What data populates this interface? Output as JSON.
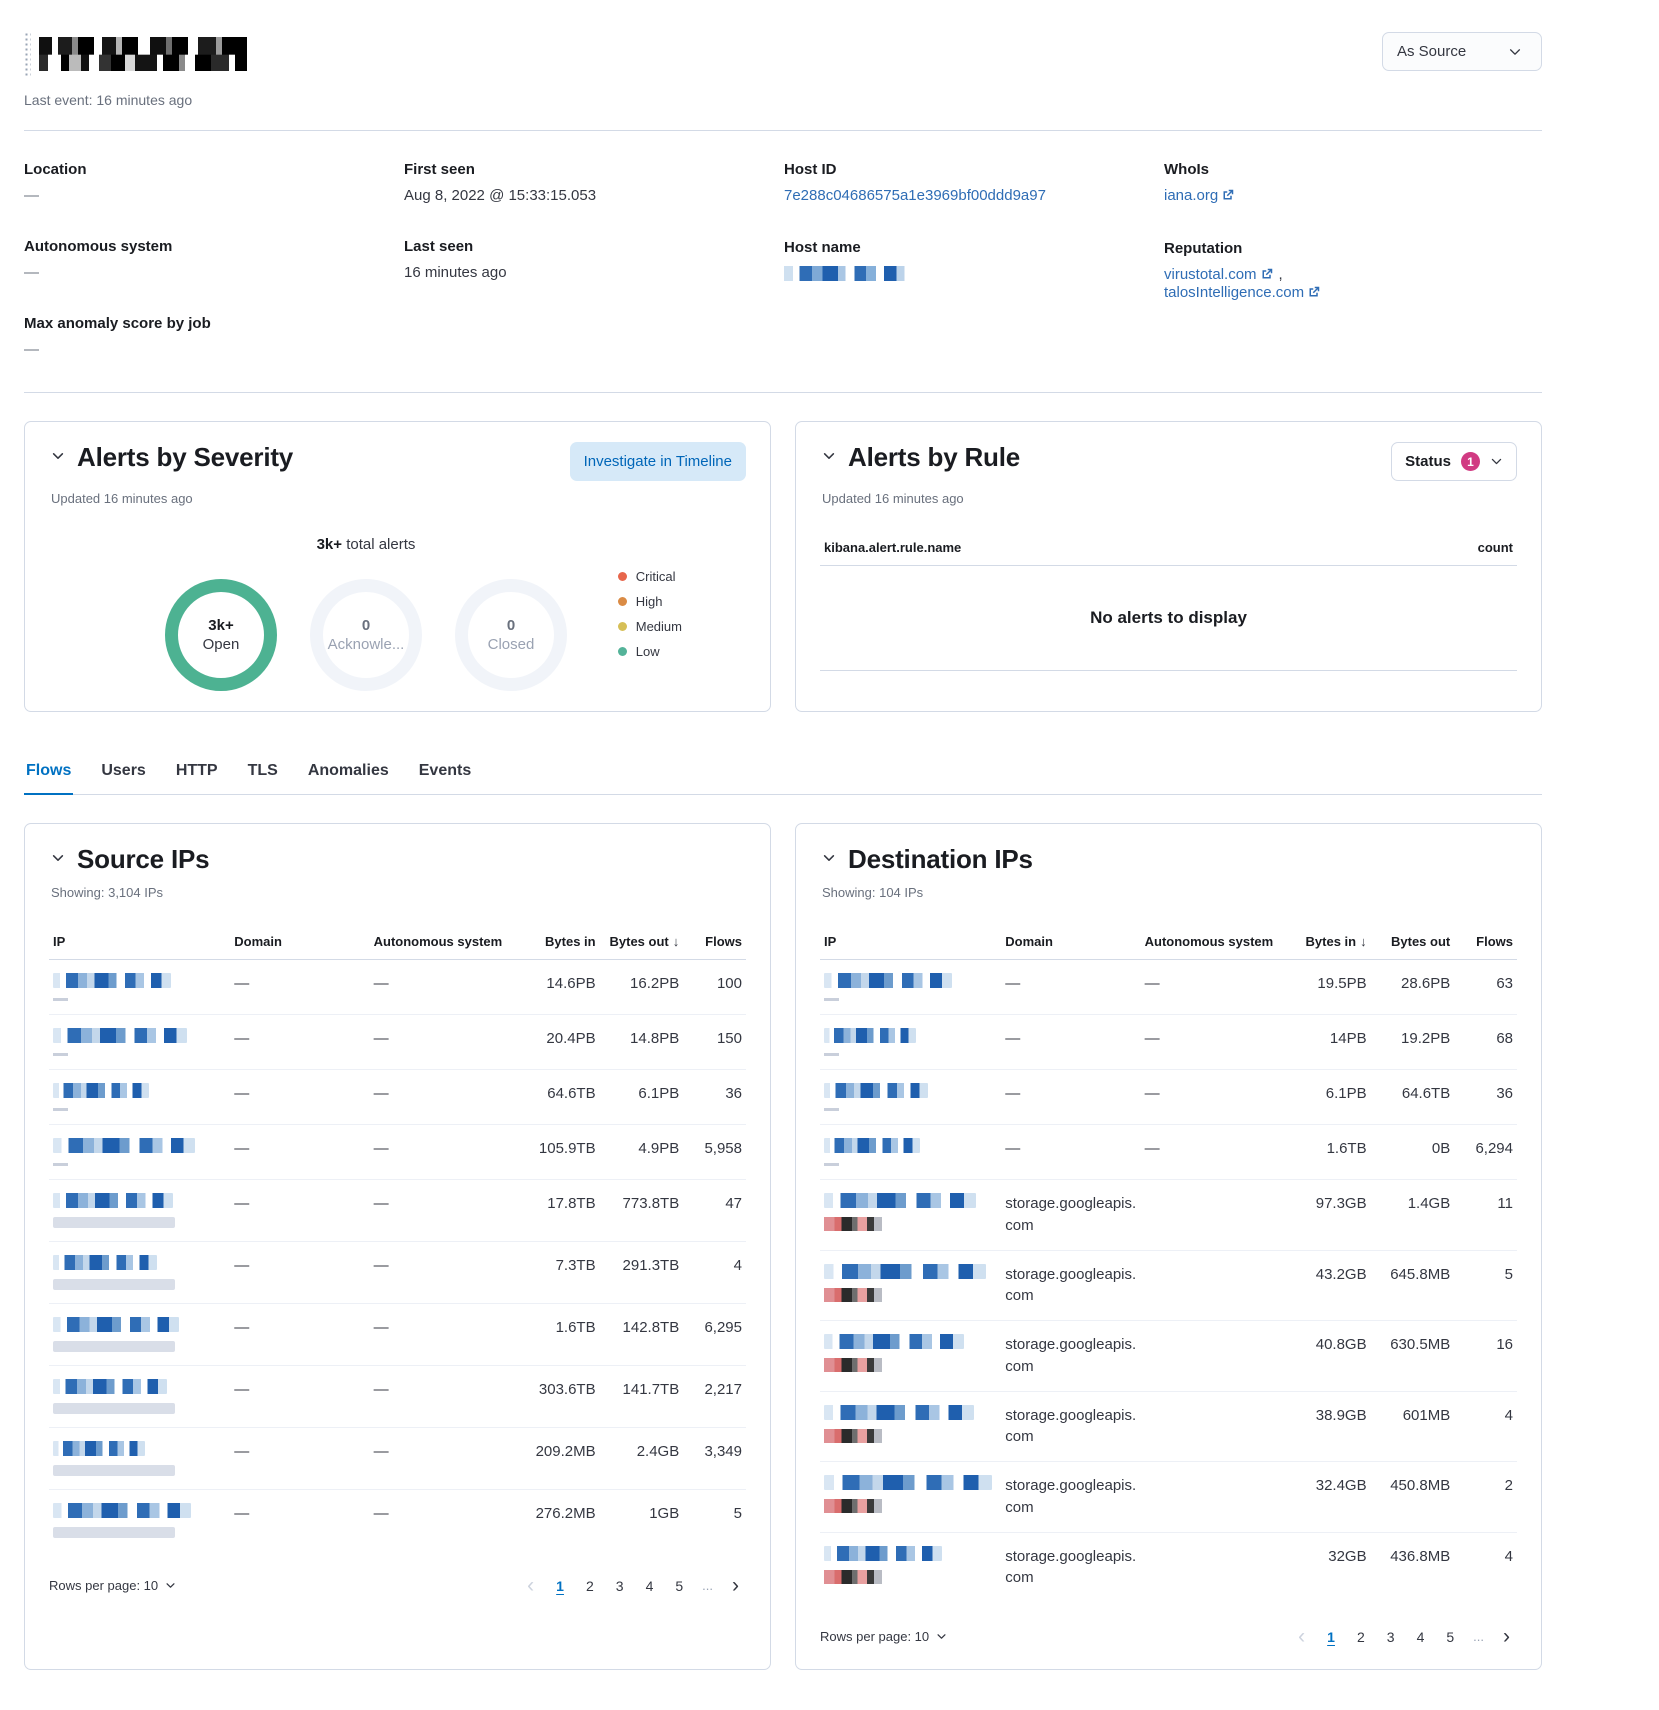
{
  "header": {
    "last_event": "Last event: 16 minutes ago",
    "view_selector": "As Source"
  },
  "meta": {
    "location": {
      "label": "Location",
      "value": "—"
    },
    "autonomous_system": {
      "label": "Autonomous system",
      "value": "—"
    },
    "max_anomaly": {
      "label": "Max anomaly score by job",
      "value": "—"
    },
    "first_seen": {
      "label": "First seen",
      "value": "Aug 8, 2022 @ 15:33:15.053"
    },
    "last_seen": {
      "label": "Last seen",
      "value": "16 minutes ago"
    },
    "host_id": {
      "label": "Host ID",
      "value": "7e288c04686575a1e3969bf00ddd9a97"
    },
    "host_name": {
      "label": "Host name"
    },
    "whois": {
      "label": "WhoIs",
      "link": "iana.org"
    },
    "reputation": {
      "label": "Reputation",
      "link1": "virustotal.com",
      "separator": ",",
      "link2": "talosIntelligence.com"
    }
  },
  "alerts_severity": {
    "title": "Alerts by Severity",
    "investigate_button": "Investigate in Timeline",
    "updated": "Updated 16 minutes ago",
    "total_value": "3k+",
    "total_suffix": " total alerts",
    "donuts": [
      {
        "value": "3k+",
        "label": "Open",
        "state": "open"
      },
      {
        "value": "0",
        "label": "Acknowle...",
        "state": "zero"
      },
      {
        "value": "0",
        "label": "Closed",
        "state": "zero"
      }
    ],
    "legend": [
      {
        "label": "Critical",
        "color": "#E7664C"
      },
      {
        "label": "High",
        "color": "#DA8B45"
      },
      {
        "label": "Medium",
        "color": "#D6BF57"
      },
      {
        "label": "Low",
        "color": "#54B399"
      }
    ]
  },
  "alerts_rule": {
    "title": "Alerts by Rule",
    "status_label": "Status",
    "status_count": "1",
    "updated": "Updated 16 minutes ago",
    "col_name": "kibana.alert.rule.name",
    "col_count": "count",
    "empty_message": "No alerts to display"
  },
  "tabs": {
    "items": [
      "Flows",
      "Users",
      "HTTP",
      "TLS",
      "Anomalies",
      "Events"
    ],
    "active_index": 0
  },
  "table_headers": {
    "ip": "IP",
    "domain": "Domain",
    "autonomous_system": "Autonomous system",
    "bytes_in": "Bytes in",
    "bytes_out": "Bytes out",
    "flows": "Flows",
    "sort_desc_icon": "↓"
  },
  "source_ips": {
    "title": "Source IPs",
    "showing": "Showing: 3,104 IPs",
    "rows": [
      {
        "domain": "—",
        "asys": "—",
        "bytes_in": "14.6PB",
        "bytes_out": "16.2PB",
        "flows": "100",
        "sub": "dash"
      },
      {
        "domain": "—",
        "asys": "—",
        "bytes_in": "20.4PB",
        "bytes_out": "14.8PB",
        "flows": "150",
        "sub": "dash"
      },
      {
        "domain": "—",
        "asys": "—",
        "bytes_in": "64.6TB",
        "bytes_out": "6.1PB",
        "flows": "36",
        "sub": "dash"
      },
      {
        "domain": "—",
        "asys": "—",
        "bytes_in": "105.9TB",
        "bytes_out": "4.9PB",
        "flows": "5,958",
        "sub": "dash"
      },
      {
        "domain": "—",
        "asys": "—",
        "bytes_in": "17.8TB",
        "bytes_out": "773.8TB",
        "flows": "47",
        "sub": "bar"
      },
      {
        "domain": "—",
        "asys": "—",
        "bytes_in": "7.3TB",
        "bytes_out": "291.3TB",
        "flows": "4",
        "sub": "bar"
      },
      {
        "domain": "—",
        "asys": "—",
        "bytes_in": "1.6TB",
        "bytes_out": "142.8TB",
        "flows": "6,295",
        "sub": "bar"
      },
      {
        "domain": "—",
        "asys": "—",
        "bytes_in": "303.6TB",
        "bytes_out": "141.7TB",
        "flows": "2,217",
        "sub": "bar"
      },
      {
        "domain": "—",
        "asys": "—",
        "bytes_in": "209.2MB",
        "bytes_out": "2.4GB",
        "flows": "3,349",
        "sub": "bar"
      },
      {
        "domain": "—",
        "asys": "—",
        "bytes_in": "276.2MB",
        "bytes_out": "1GB",
        "flows": "5",
        "sub": "bar"
      }
    ]
  },
  "destination_ips": {
    "title": "Destination IPs",
    "showing": "Showing: 104 IPs",
    "rows": [
      {
        "domain": "—",
        "asys": "—",
        "bytes_in": "19.5PB",
        "bytes_out": "28.6PB",
        "flows": "63",
        "sub": "dash"
      },
      {
        "domain": "—",
        "asys": "—",
        "bytes_in": "14PB",
        "bytes_out": "19.2PB",
        "flows": "68",
        "sub": "dash"
      },
      {
        "domain": "—",
        "asys": "—",
        "bytes_in": "6.1PB",
        "bytes_out": "64.6TB",
        "flows": "36",
        "sub": "dash"
      },
      {
        "domain": "—",
        "asys": "—",
        "bytes_in": "1.6TB",
        "bytes_out": "0B",
        "flows": "6,294",
        "sub": "dash"
      },
      {
        "domain": "storage.googleapis.com",
        "asys": "",
        "bytes_in": "97.3GB",
        "bytes_out": "1.4GB",
        "flows": "11",
        "sub": "flag"
      },
      {
        "domain": "storage.googleapis.com",
        "asys": "",
        "bytes_in": "43.2GB",
        "bytes_out": "645.8MB",
        "flows": "5",
        "sub": "flag"
      },
      {
        "domain": "storage.googleapis.com",
        "asys": "",
        "bytes_in": "40.8GB",
        "bytes_out": "630.5MB",
        "flows": "16",
        "sub": "flag"
      },
      {
        "domain": "storage.googleapis.com",
        "asys": "",
        "bytes_in": "38.9GB",
        "bytes_out": "601MB",
        "flows": "4",
        "sub": "flag"
      },
      {
        "domain": "storage.googleapis.com",
        "asys": "",
        "bytes_in": "32.4GB",
        "bytes_out": "450.8MB",
        "flows": "2",
        "sub": "flag"
      },
      {
        "domain": "storage.googleapis.com",
        "asys": "",
        "bytes_in": "32GB",
        "bytes_out": "436.8MB",
        "flows": "4",
        "sub": "flag"
      }
    ]
  },
  "pagination": {
    "rows_per_page": "Rows per page: 10",
    "pages": [
      "1",
      "2",
      "3",
      "4",
      "5"
    ],
    "ellipsis": "...",
    "active_page": "1"
  }
}
